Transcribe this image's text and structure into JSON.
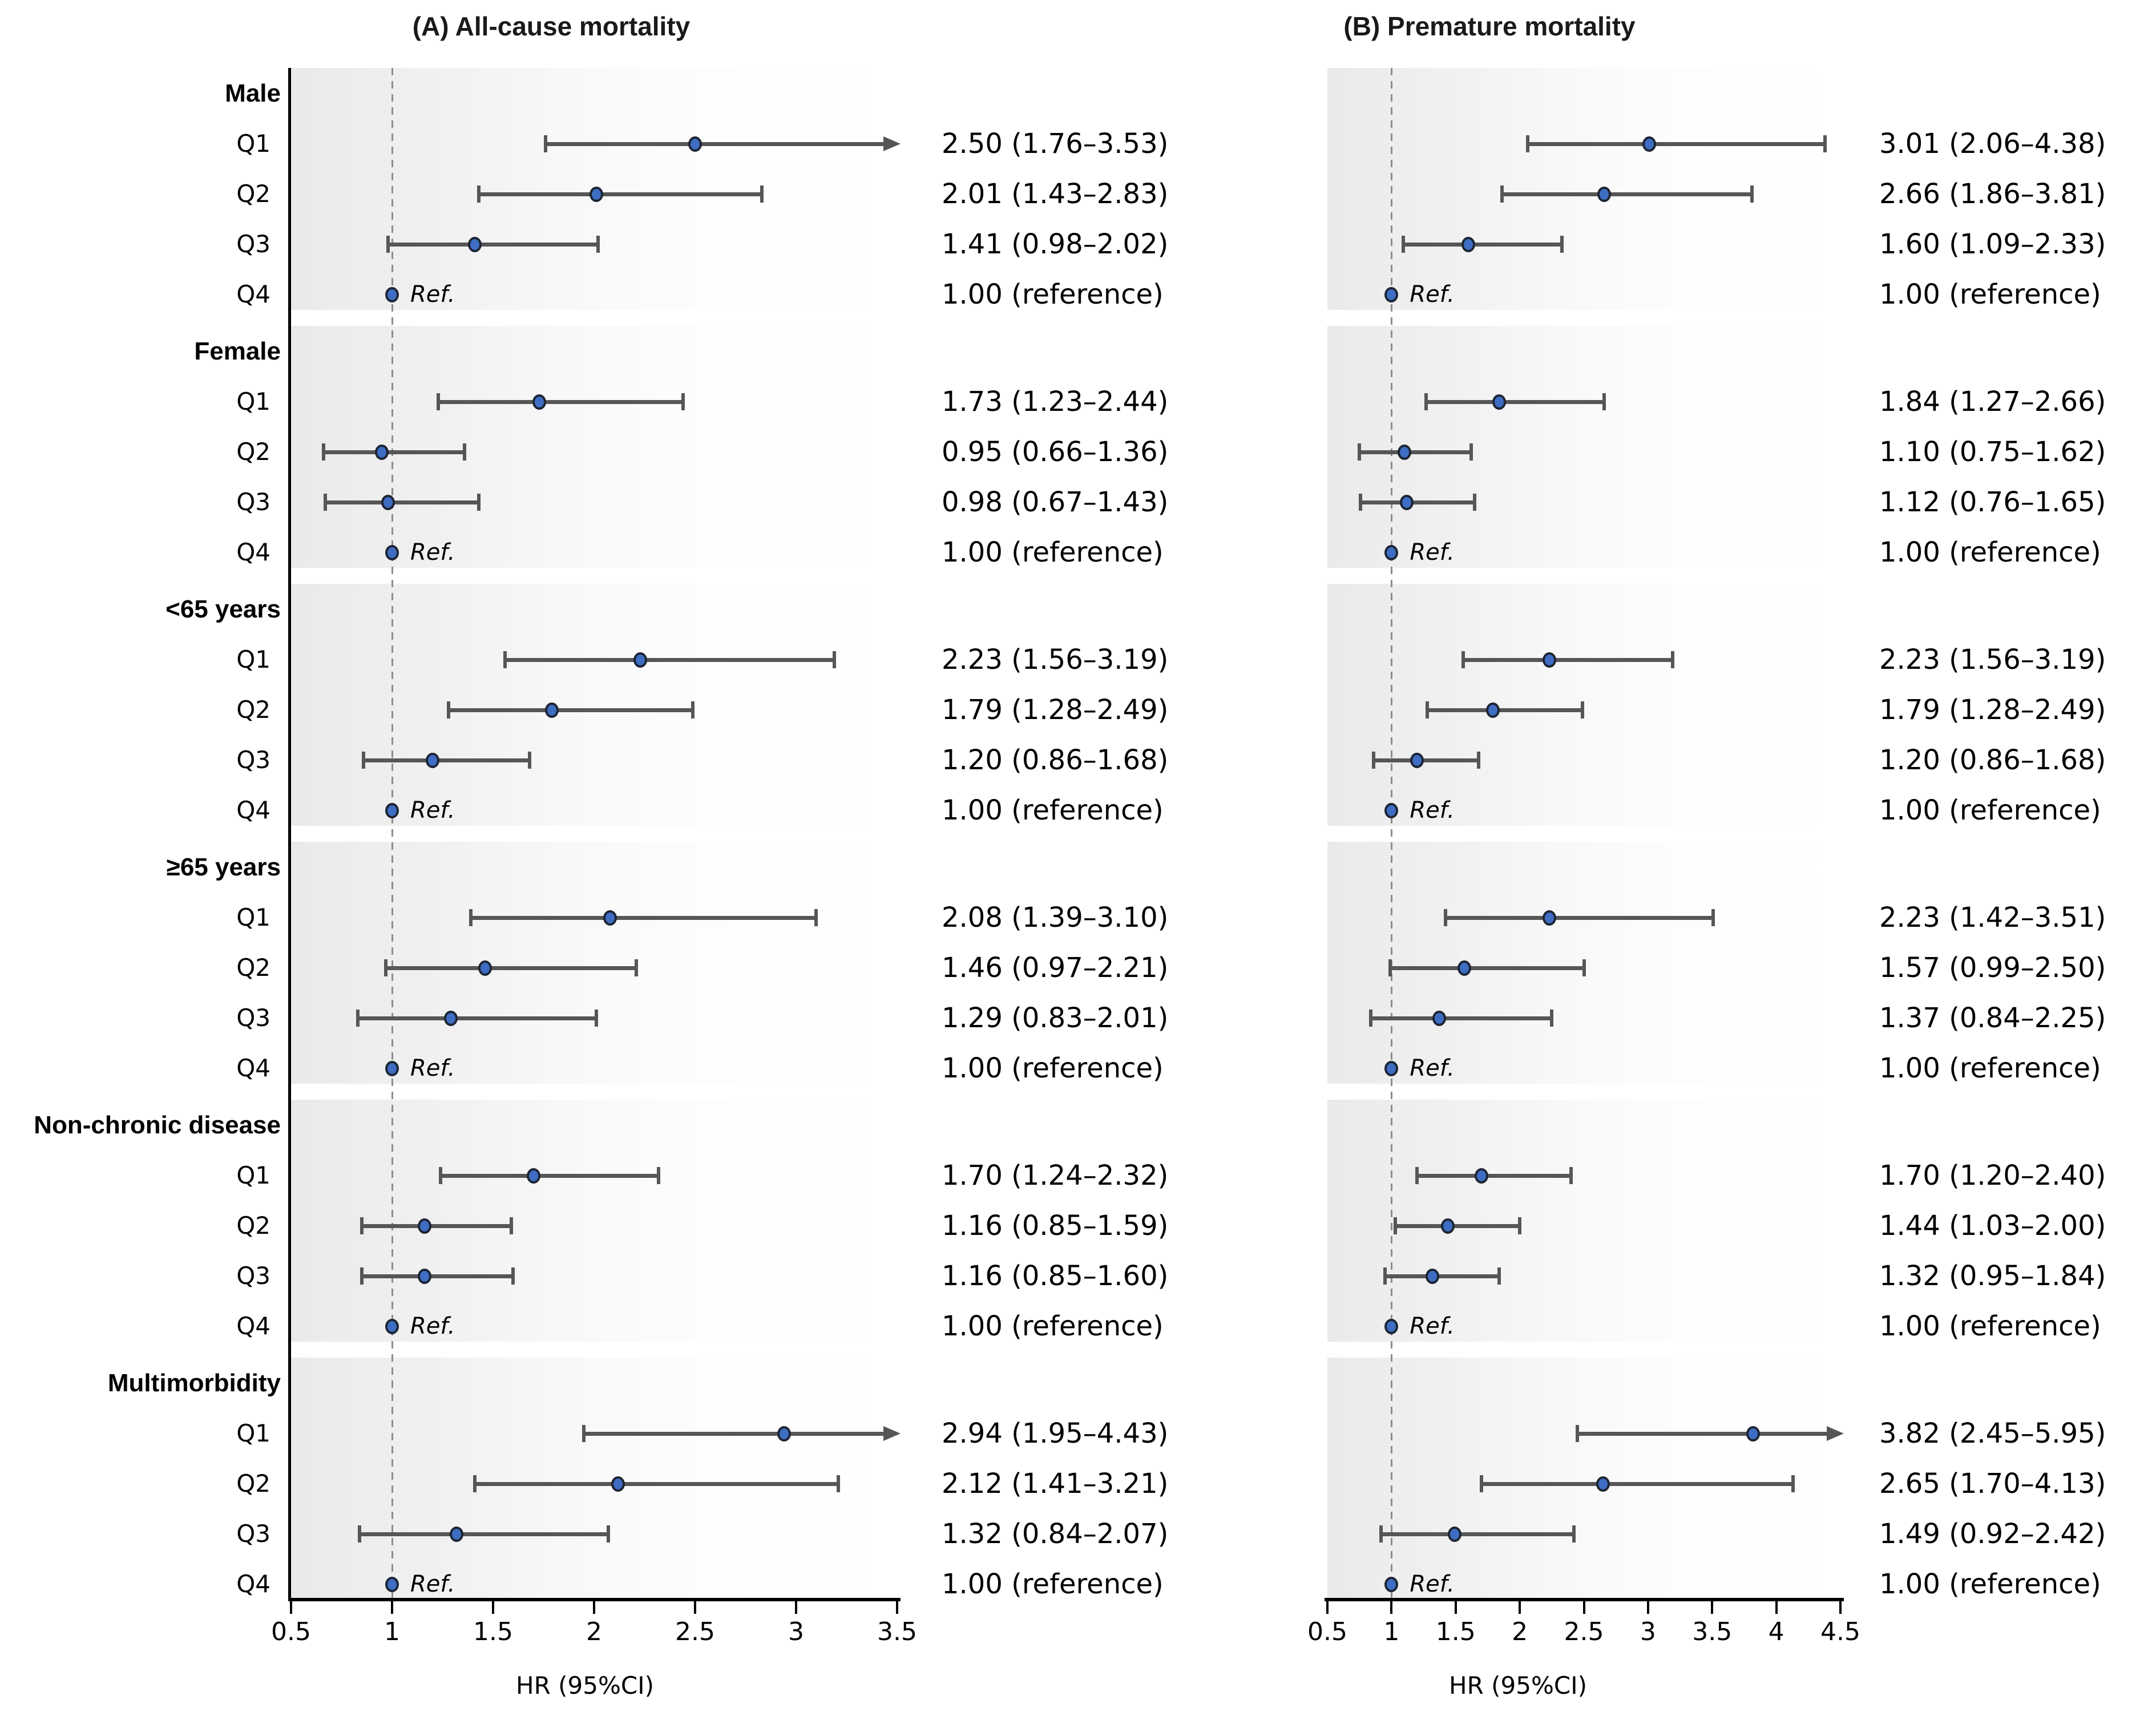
{
  "chart_data": {
    "type": "scatter",
    "variant": "forest-plot",
    "grid": false,
    "legend": null,
    "group_labels": [
      "Male",
      "Female",
      "<65 years",
      "≥65 years",
      "Non-chronic disease",
      "Multimorbidity"
    ],
    "row_labels": [
      "Q1",
      "Q2",
      "Q3",
      "Q4"
    ],
    "ref_marker_label": "Ref.",
    "style": {
      "marker_fill": "#3e6dc3",
      "marker_stroke": "#1d2533",
      "error_bar_color": "#565656",
      "ref_line_color": "#8c8c8c",
      "band_gradient_left": "#eaeaea",
      "axis_color": "#000000"
    },
    "panels": [
      {
        "title": "(A) All-cause mortality",
        "xlabel": "HR (95%CI)",
        "xlim": [
          0.5,
          3.5
        ],
        "xticks": [
          0.5,
          1,
          1.5,
          2,
          2.5,
          3,
          3.5
        ],
        "reference_x": 1,
        "groups": [
          [
            {
              "hr": 2.5,
              "lo": 1.76,
              "hi": 3.53,
              "text": "2.50 (1.76–3.53)"
            },
            {
              "hr": 2.01,
              "lo": 1.43,
              "hi": 2.83,
              "text": "2.01 (1.43–2.83)"
            },
            {
              "hr": 1.41,
              "lo": 0.98,
              "hi": 2.02,
              "text": "1.41 (0.98–2.02)"
            },
            {
              "hr": 1.0,
              "ref": true,
              "text": "1.00 (reference)"
            }
          ],
          [
            {
              "hr": 1.73,
              "lo": 1.23,
              "hi": 2.44,
              "text": "1.73 (1.23–2.44)"
            },
            {
              "hr": 0.95,
              "lo": 0.66,
              "hi": 1.36,
              "text": "0.95 (0.66–1.36)"
            },
            {
              "hr": 0.98,
              "lo": 0.67,
              "hi": 1.43,
              "text": "0.98 (0.67–1.43)"
            },
            {
              "hr": 1.0,
              "ref": true,
              "text": "1.00 (reference)"
            }
          ],
          [
            {
              "hr": 2.23,
              "lo": 1.56,
              "hi": 3.19,
              "text": "2.23 (1.56–3.19)"
            },
            {
              "hr": 1.79,
              "lo": 1.28,
              "hi": 2.49,
              "text": "1.79 (1.28–2.49)"
            },
            {
              "hr": 1.2,
              "lo": 0.86,
              "hi": 1.68,
              "text": "1.20 (0.86–1.68)"
            },
            {
              "hr": 1.0,
              "ref": true,
              "text": "1.00 (reference)"
            }
          ],
          [
            {
              "hr": 2.08,
              "lo": 1.39,
              "hi": 3.1,
              "text": "2.08 (1.39–3.10)"
            },
            {
              "hr": 1.46,
              "lo": 0.97,
              "hi": 2.21,
              "text": "1.46 (0.97–2.21)"
            },
            {
              "hr": 1.29,
              "lo": 0.83,
              "hi": 2.01,
              "text": "1.29 (0.83–2.01)"
            },
            {
              "hr": 1.0,
              "ref": true,
              "text": "1.00 (reference)"
            }
          ],
          [
            {
              "hr": 1.7,
              "lo": 1.24,
              "hi": 2.32,
              "text": "1.70 (1.24–2.32)"
            },
            {
              "hr": 1.16,
              "lo": 0.85,
              "hi": 1.59,
              "text": "1.16 (0.85–1.59)"
            },
            {
              "hr": 1.16,
              "lo": 0.85,
              "hi": 1.6,
              "text": "1.16 (0.85–1.60)"
            },
            {
              "hr": 1.0,
              "ref": true,
              "text": "1.00 (reference)"
            }
          ],
          [
            {
              "hr": 2.94,
              "lo": 1.95,
              "hi": 4.43,
              "text": "2.94 (1.95–4.43)"
            },
            {
              "hr": 2.12,
              "lo": 1.41,
              "hi": 3.21,
              "text": "2.12 (1.41–3.21)"
            },
            {
              "hr": 1.32,
              "lo": 0.84,
              "hi": 2.07,
              "text": "1.32 (0.84–2.07)"
            },
            {
              "hr": 1.0,
              "ref": true,
              "text": "1.00 (reference)"
            }
          ]
        ]
      },
      {
        "title": "(B) Premature mortality",
        "xlabel": "HR (95%CI)",
        "xlim": [
          0.5,
          4.5
        ],
        "xticks": [
          0.5,
          1,
          1.5,
          2,
          2.5,
          3,
          3.5,
          4,
          4.5
        ],
        "reference_x": 1,
        "groups": [
          [
            {
              "hr": 3.01,
              "lo": 2.06,
              "hi": 4.38,
              "text": "3.01 (2.06–4.38)"
            },
            {
              "hr": 2.66,
              "lo": 1.86,
              "hi": 3.81,
              "text": "2.66 (1.86–3.81)"
            },
            {
              "hr": 1.6,
              "lo": 1.09,
              "hi": 2.33,
              "text": "1.60 (1.09–2.33)"
            },
            {
              "hr": 1.0,
              "ref": true,
              "text": "1.00 (reference)"
            }
          ],
          [
            {
              "hr": 1.84,
              "lo": 1.27,
              "hi": 2.66,
              "text": "1.84 (1.27–2.66)"
            },
            {
              "hr": 1.1,
              "lo": 0.75,
              "hi": 1.62,
              "text": "1.10 (0.75–1.62)"
            },
            {
              "hr": 1.12,
              "lo": 0.76,
              "hi": 1.65,
              "text": "1.12 (0.76–1.65)"
            },
            {
              "hr": 1.0,
              "ref": true,
              "text": "1.00 (reference)"
            }
          ],
          [
            {
              "hr": 2.23,
              "lo": 1.56,
              "hi": 3.19,
              "text": "2.23 (1.56–3.19)"
            },
            {
              "hr": 1.79,
              "lo": 1.28,
              "hi": 2.49,
              "text": "1.79 (1.28–2.49)"
            },
            {
              "hr": 1.2,
              "lo": 0.86,
              "hi": 1.68,
              "text": "1.20 (0.86–1.68)"
            },
            {
              "hr": 1.0,
              "ref": true,
              "text": "1.00 (reference)"
            }
          ],
          [
            {
              "hr": 2.23,
              "lo": 1.42,
              "hi": 3.51,
              "text": "2.23 (1.42–3.51)"
            },
            {
              "hr": 1.57,
              "lo": 0.99,
              "hi": 2.5,
              "text": "1.57 (0.99–2.50)"
            },
            {
              "hr": 1.37,
              "lo": 0.84,
              "hi": 2.25,
              "text": "1.37 (0.84–2.25)"
            },
            {
              "hr": 1.0,
              "ref": true,
              "text": "1.00 (reference)"
            }
          ],
          [
            {
              "hr": 1.7,
              "lo": 1.2,
              "hi": 2.4,
              "text": "1.70 (1.20–2.40)"
            },
            {
              "hr": 1.44,
              "lo": 1.03,
              "hi": 2.0,
              "text": "1.44 (1.03–2.00)"
            },
            {
              "hr": 1.32,
              "lo": 0.95,
              "hi": 1.84,
              "text": "1.32 (0.95–1.84)"
            },
            {
              "hr": 1.0,
              "ref": true,
              "text": "1.00 (reference)"
            }
          ],
          [
            {
              "hr": 3.82,
              "lo": 2.45,
              "hi": 5.95,
              "text": "3.82 (2.45–5.95)"
            },
            {
              "hr": 2.65,
              "lo": 1.7,
              "hi": 4.13,
              "text": "2.65 (1.70–4.13)"
            },
            {
              "hr": 1.49,
              "lo": 0.92,
              "hi": 2.42,
              "text": "1.49 (0.92–2.42)"
            },
            {
              "hr": 1.0,
              "ref": true,
              "text": "1.00 (reference)"
            }
          ]
        ]
      }
    ]
  }
}
